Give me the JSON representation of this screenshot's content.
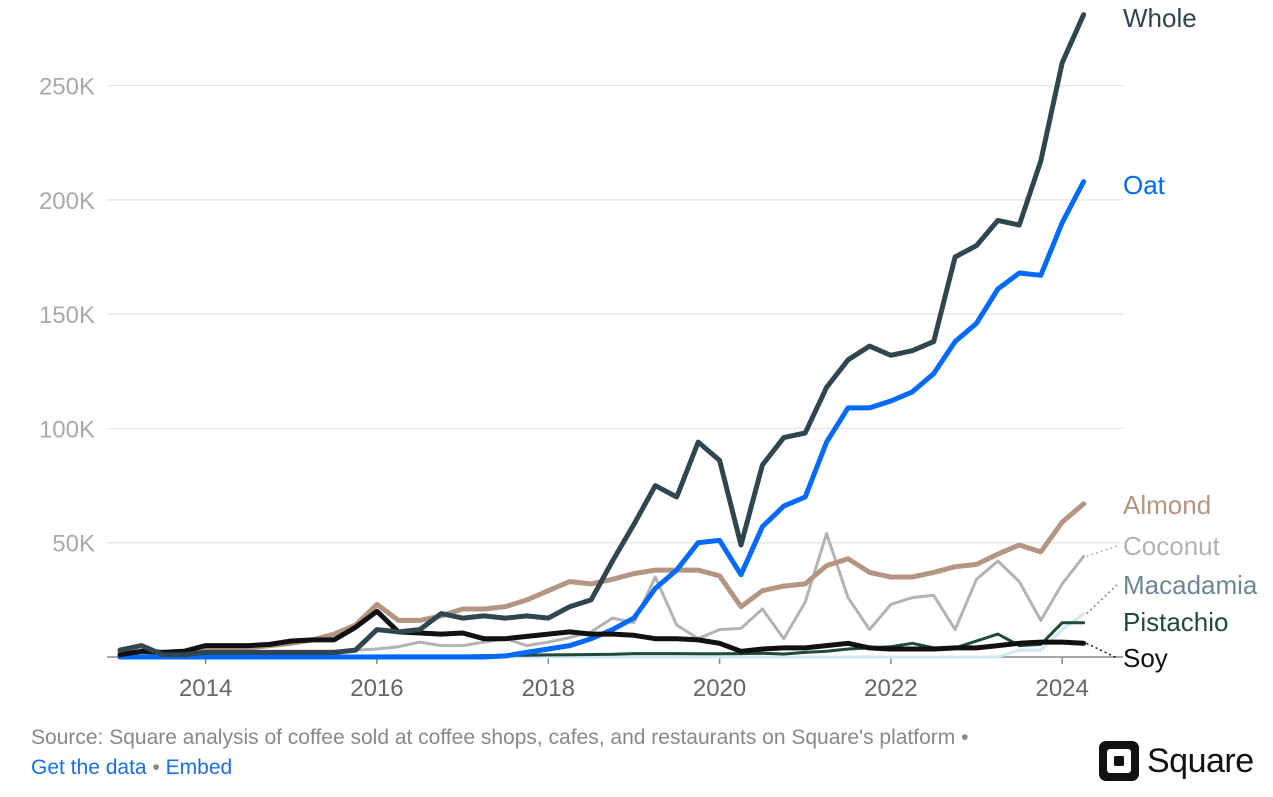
{
  "footer": {
    "source_text": "Source: Square analysis of coffee sold at coffee shops, cafes, and restaurants on Square's platform",
    "separator": "•",
    "get_data_label": "Get the data",
    "embed_label": "Embed"
  },
  "brand": {
    "name": "Square"
  },
  "chart_data": {
    "type": "line",
    "title": "",
    "xlabel": "",
    "ylabel": "",
    "xlim": [
      2013.0,
      2024.5
    ],
    "ylim": [
      0,
      280000
    ],
    "x_ticks": [
      2014,
      2016,
      2018,
      2020,
      2022,
      2024
    ],
    "y_ticks": [
      50000,
      100000,
      150000,
      200000,
      250000
    ],
    "y_tick_labels": [
      "50K",
      "100K",
      "150K",
      "200K",
      "250K"
    ],
    "grid": "horizontal",
    "legend": "direct-labels-right",
    "x": [
      2013.0,
      2013.25,
      2013.5,
      2013.75,
      2014.0,
      2014.25,
      2014.5,
      2014.75,
      2015.0,
      2015.25,
      2015.5,
      2015.75,
      2016.0,
      2016.25,
      2016.5,
      2016.75,
      2017.0,
      2017.25,
      2017.5,
      2017.75,
      2018.0,
      2018.25,
      2018.5,
      2018.75,
      2019.0,
      2019.25,
      2019.5,
      2019.75,
      2020.0,
      2020.25,
      2020.5,
      2020.75,
      2021.0,
      2021.25,
      2021.5,
      2021.75,
      2022.0,
      2022.25,
      2022.5,
      2022.75,
      2023.0,
      2023.25,
      2023.5,
      2023.75,
      2024.0,
      2024.25
    ],
    "series": [
      {
        "name": "Coconut",
        "color": "#b3b3b3",
        "width": 3,
        "label_dashed": true,
        "values": [
          500,
          500,
          500,
          500,
          800,
          1000,
          1200,
          1500,
          1800,
          2000,
          2500,
          3000,
          3500,
          4500,
          6500,
          5000,
          5000,
          6500,
          8000,
          5000,
          6500,
          8500,
          11000,
          17000,
          15000,
          35000,
          14000,
          8000,
          12000,
          12500,
          21000,
          8000,
          24000,
          54000,
          26000,
          12000,
          23000,
          26000,
          27000,
          12000,
          34000,
          42000,
          33000,
          16000,
          32000,
          44000
        ]
      },
      {
        "name": "Macadamia",
        "color": "#cfe8f5",
        "width": 3,
        "label_color": "#6b8696",
        "label_dashed": true,
        "values": [
          0,
          0,
          0,
          0,
          0,
          0,
          0,
          0,
          0,
          0,
          0,
          0,
          0,
          0,
          0,
          0,
          0,
          0,
          0,
          0,
          0,
          0,
          0,
          0,
          0,
          0,
          0,
          0,
          0,
          0,
          0,
          0,
          0,
          0,
          0,
          0,
          0,
          0,
          0,
          0,
          0,
          0,
          3000,
          3000,
          12000,
          19000
        ]
      },
      {
        "name": "Almond",
        "color": "#b49582",
        "width": 5,
        "values": [
          2000,
          1500,
          2000,
          2500,
          3000,
          3500,
          4000,
          5000,
          6000,
          7500,
          10000,
          14000,
          23000,
          16000,
          16000,
          18000,
          21000,
          21000,
          22000,
          25000,
          29000,
          33000,
          32000,
          34000,
          36500,
          38000,
          38000,
          38000,
          35500,
          22000,
          29000,
          31000,
          32000,
          40000,
          43000,
          37000,
          35000,
          35000,
          37000,
          39500,
          40500,
          45000,
          49000,
          46000,
          59000,
          67000
        ]
      },
      {
        "name": "Pistachio",
        "color": "#1f4a38",
        "width": 3,
        "values": [
          0,
          0,
          0,
          0,
          0,
          0,
          0,
          0,
          0,
          0,
          0,
          0,
          500,
          500,
          500,
          500,
          500,
          600,
          700,
          800,
          900,
          1000,
          1100,
          1200,
          1500,
          1500,
          1500,
          1400,
          1400,
          1500,
          1600,
          1300,
          2000,
          2500,
          3500,
          4000,
          4500,
          6000,
          4000,
          4000,
          7000,
          10000,
          5000,
          5500,
          15000,
          15000
        ]
      },
      {
        "name": "Oat",
        "color": "#006aff",
        "width": 5,
        "values": [
          0,
          0,
          0,
          0,
          0,
          0,
          0,
          0,
          0,
          0,
          0,
          0,
          0,
          0,
          0,
          0,
          0,
          0,
          500,
          2000,
          3500,
          5000,
          8000,
          12000,
          17000,
          30000,
          38000,
          50000,
          51000,
          36000,
          57000,
          66000,
          70000,
          94000,
          109000,
          109000,
          112000,
          116000,
          124000,
          138000,
          146000,
          161000,
          168000,
          167000,
          190000,
          208000
        ]
      },
      {
        "name": "Soy",
        "color": "#111111",
        "width": 5,
        "label_dashed": true,
        "values": [
          1000,
          2500,
          2000,
          2500,
          5000,
          5000,
          5000,
          5500,
          7000,
          7500,
          7500,
          13000,
          20000,
          11000,
          10500,
          10000,
          10500,
          8000,
          8000,
          9000,
          10000,
          11000,
          10000,
          10000,
          9500,
          8000,
          8000,
          7500,
          6000,
          2500,
          3500,
          4000,
          4000,
          5000,
          6000,
          4000,
          3500,
          3500,
          3500,
          4000,
          4000,
          5000,
          6000,
          6500,
          6500,
          6000
        ]
      },
      {
        "name": "Whole",
        "color": "#2f4550",
        "width": 5,
        "values": [
          3000,
          5000,
          1000,
          1000,
          2000,
          2000,
          2000,
          2000,
          2000,
          2000,
          2000,
          3000,
          12000,
          11000,
          12000,
          19000,
          17000,
          18000,
          17000,
          18000,
          17000,
          22000,
          25000,
          42000,
          58000,
          75000,
          70000,
          94000,
          86000,
          49000,
          84000,
          96000,
          98000,
          118000,
          130000,
          136000,
          132000,
          134000,
          138000,
          175000,
          180000,
          191000,
          189000,
          217000,
          260000,
          281000
        ]
      }
    ]
  }
}
